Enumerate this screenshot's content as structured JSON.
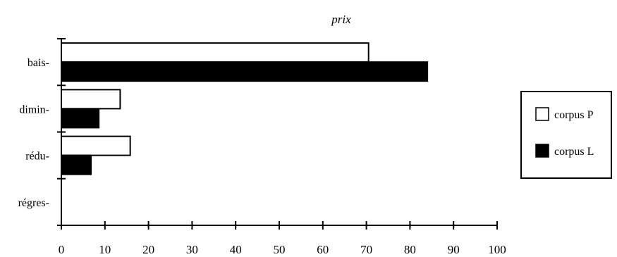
{
  "chart_data": {
    "type": "bar",
    "orientation": "horizontal",
    "title": "prix",
    "xlabel": "",
    "ylabel": "",
    "categories": [
      "bais-",
      "dimin-",
      "rédu-",
      "régres-"
    ],
    "series": [
      {
        "name": "corpus P",
        "values": [
          70.5,
          13.5,
          15.8,
          0
        ],
        "color": "#ffffff"
      },
      {
        "name": "corpus L",
        "values": [
          84,
          8.6,
          6.8,
          0
        ],
        "color": "#000000"
      }
    ],
    "xlim": [
      0,
      100
    ],
    "x_ticks": [
      "0",
      "10",
      "20",
      "30",
      "40",
      "50",
      "60",
      "70",
      "80",
      "90",
      "100"
    ],
    "grid": false,
    "legend_position": "right"
  }
}
